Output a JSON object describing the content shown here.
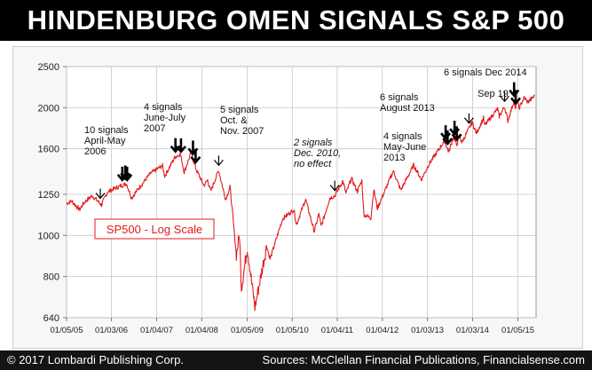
{
  "title": "HINDENBURG OMEN SIGNALS S&P 500",
  "footer": {
    "left": "© 2017 Lombardi Publishing Corp.",
    "right": "Sources: McClellan Financial Publications, Financialsense.com"
  },
  "colors": {
    "line": "#e31a1c",
    "arrow": "#000000",
    "legend_border": "#e31a1c"
  },
  "chart_data": {
    "type": "line",
    "title": "",
    "xlabel": "",
    "ylabel": "",
    "y_scale": "log",
    "ylim": [
      640,
      2500
    ],
    "xlim": [
      "2005-01-05",
      "2015-06-01"
    ],
    "y_ticks": [
      640,
      800,
      1000,
      1250,
      1600,
      2000,
      2500
    ],
    "x_ticks": [
      {
        "date": "2005-01-05",
        "label": "01/05/05"
      },
      {
        "date": "2006-01-03",
        "label": "01/03/06"
      },
      {
        "date": "2007-01-04",
        "label": "01/04/07"
      },
      {
        "date": "2008-01-04",
        "label": "01/04/08"
      },
      {
        "date": "2009-01-05",
        "label": "01/05/09"
      },
      {
        "date": "2010-01-05",
        "label": "01/05/10"
      },
      {
        "date": "2011-01-04",
        "label": "01/04/11"
      },
      {
        "date": "2012-01-04",
        "label": "01/04/12"
      },
      {
        "date": "2013-01-03",
        "label": "01/03/13"
      },
      {
        "date": "2014-01-03",
        "label": "01/03/14"
      },
      {
        "date": "2015-01-05",
        "label": "01/05/15"
      }
    ],
    "grid": true,
    "legend": "SP500 - Log Scale",
    "series": [
      {
        "name": "SP500 - Log Scale",
        "points": [
          [
            "2005-01-05",
            1190
          ],
          [
            "2005-02-15",
            1205
          ],
          [
            "2005-04-20",
            1150
          ],
          [
            "2005-06-01",
            1200
          ],
          [
            "2005-08-01",
            1240
          ],
          [
            "2005-10-15",
            1180
          ],
          [
            "2005-12-01",
            1265
          ],
          [
            "2006-01-15",
            1285
          ],
          [
            "2006-05-05",
            1325
          ],
          [
            "2006-06-15",
            1225
          ],
          [
            "2006-08-01",
            1280
          ],
          [
            "2006-11-15",
            1400
          ],
          [
            "2007-02-20",
            1460
          ],
          [
            "2007-03-10",
            1380
          ],
          [
            "2007-06-01",
            1530
          ],
          [
            "2007-07-15",
            1555
          ],
          [
            "2007-08-15",
            1410
          ],
          [
            "2007-10-09",
            1565
          ],
          [
            "2007-11-20",
            1430
          ],
          [
            "2008-01-22",
            1310
          ],
          [
            "2008-02-20",
            1350
          ],
          [
            "2008-03-17",
            1270
          ],
          [
            "2008-05-19",
            1425
          ],
          [
            "2008-07-15",
            1215
          ],
          [
            "2008-08-20",
            1300
          ],
          [
            "2008-10-10",
            900
          ],
          [
            "2008-11-04",
            1005
          ],
          [
            "2008-11-20",
            752
          ],
          [
            "2009-01-06",
            935
          ],
          [
            "2009-03-09",
            677
          ],
          [
            "2009-06-12",
            945
          ],
          [
            "2009-07-10",
            880
          ],
          [
            "2009-10-19",
            1095
          ],
          [
            "2010-01-19",
            1150
          ],
          [
            "2010-02-08",
            1060
          ],
          [
            "2010-04-23",
            1217
          ],
          [
            "2010-07-02",
            1022
          ],
          [
            "2010-08-09",
            1125
          ],
          [
            "2010-08-27",
            1050
          ],
          [
            "2010-11-05",
            1225
          ],
          [
            "2010-12-15",
            1240
          ],
          [
            "2011-02-18",
            1343
          ],
          [
            "2011-03-16",
            1256
          ],
          [
            "2011-04-29",
            1363
          ],
          [
            "2011-06-15",
            1270
          ],
          [
            "2011-07-22",
            1345
          ],
          [
            "2011-08-08",
            1119
          ],
          [
            "2011-10-03",
            1099
          ],
          [
            "2011-10-27",
            1285
          ],
          [
            "2011-11-25",
            1158
          ],
          [
            "2012-04-02",
            1419
          ],
          [
            "2012-06-01",
            1278
          ],
          [
            "2012-09-14",
            1465
          ],
          [
            "2012-11-15",
            1353
          ],
          [
            "2013-01-15",
            1472
          ],
          [
            "2013-05-21",
            1669
          ],
          [
            "2013-06-24",
            1573
          ],
          [
            "2013-08-02",
            1709
          ],
          [
            "2013-08-27",
            1630
          ],
          [
            "2013-09-18",
            1725
          ],
          [
            "2013-10-08",
            1656
          ],
          [
            "2013-12-31",
            1848
          ],
          [
            "2014-02-03",
            1741
          ],
          [
            "2014-04-02",
            1890
          ],
          [
            "2014-04-11",
            1815
          ],
          [
            "2014-07-24",
            1988
          ],
          [
            "2014-08-07",
            1909
          ],
          [
            "2014-09-19",
            2011
          ],
          [
            "2014-10-15",
            1862
          ],
          [
            "2014-12-05",
            2075
          ],
          [
            "2014-12-16",
            1972
          ],
          [
            "2014-12-29",
            2090
          ],
          [
            "2015-01-15",
            1992
          ],
          [
            "2015-02-25",
            2115
          ],
          [
            "2015-03-25",
            2061
          ],
          [
            "2015-05-20",
            2130
          ]
        ]
      }
    ],
    "annotations": [
      {
        "text": [
          "10 signals",
          "April-May",
          "2006"
        ],
        "style": "normal"
      },
      {
        "text": [
          "4 signals",
          "June-July",
          "2007"
        ],
        "style": "normal"
      },
      {
        "text": [
          "5 signals",
          "Oct. &",
          "Nov. 2007"
        ],
        "style": "normal"
      },
      {
        "text": [
          "2 signals",
          "Dec. 2010,",
          "no effect"
        ],
        "style": "italic"
      },
      {
        "text": [
          "6 signals",
          "August 2013"
        ],
        "style": "normal"
      },
      {
        "text": [
          "4 signals",
          "May-June",
          "2013"
        ],
        "style": "normal"
      },
      {
        "text": [
          "Sep 19"
        ],
        "style": "normal"
      },
      {
        "text": [
          "6 signals Dec 2014"
        ],
        "style": "normal"
      }
    ],
    "signals": [
      {
        "date": "2005-10-05",
        "weight": "single"
      },
      {
        "date": "2006-04-01",
        "weight": "double"
      },
      {
        "date": "2006-04-25",
        "weight": "double"
      },
      {
        "date": "2006-05-10",
        "weight": "double"
      },
      {
        "date": "2007-06-05",
        "weight": "double"
      },
      {
        "date": "2007-07-20",
        "weight": "double"
      },
      {
        "date": "2007-10-25",
        "weight": "double"
      },
      {
        "date": "2007-11-15",
        "weight": "double"
      },
      {
        "date": "2008-05-20",
        "weight": "single"
      },
      {
        "date": "2010-12-15",
        "weight": "single"
      },
      {
        "date": "2013-05-30",
        "weight": "double"
      },
      {
        "date": "2013-06-15",
        "weight": "double"
      },
      {
        "date": "2013-08-10",
        "weight": "double"
      },
      {
        "date": "2013-08-28",
        "weight": "double"
      },
      {
        "date": "2013-12-05",
        "weight": "single"
      },
      {
        "date": "2014-09-19",
        "weight": "single"
      },
      {
        "date": "2014-12-05",
        "weight": "double"
      },
      {
        "date": "2014-12-18",
        "weight": "double"
      }
    ]
  }
}
